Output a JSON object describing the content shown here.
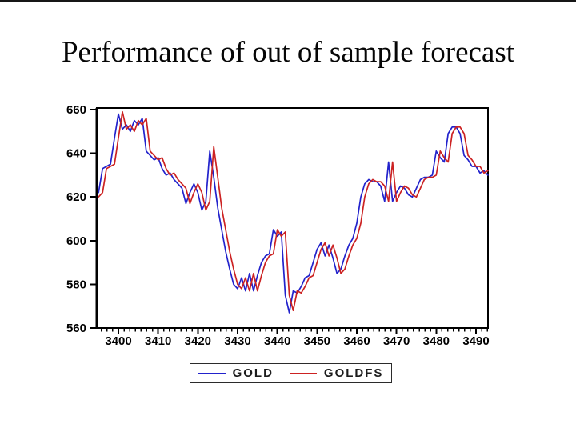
{
  "slide": {
    "title": "Performance of out of sample forecast"
  },
  "chart_data": {
    "type": "line",
    "title": "Performance of out of sample forecast",
    "xlabel": "",
    "ylabel": "",
    "grid": false,
    "legend_position": "bottom-outside-boxed",
    "xlim": [
      3394.56,
      3493.02
    ],
    "ylim": [
      560,
      660
    ],
    "x_ticks": [
      3400,
      3410,
      3420,
      3430,
      3440,
      3450,
      3460,
      3470,
      3480,
      3490
    ],
    "x_minor_ticks_between_majors": 6,
    "y_ticks": [
      560,
      580,
      600,
      620,
      640,
      660
    ],
    "x_start": 3395,
    "x_step": 1,
    "axis_color": "#000000",
    "tick_label_color": "#000000",
    "series": [
      {
        "name": "GOLD",
        "color": "#2222cc",
        "values": [
          622,
          633,
          634,
          635,
          647,
          658,
          651,
          653,
          650,
          655,
          653,
          656,
          641,
          639,
          637,
          638,
          633,
          630,
          631,
          628,
          626,
          624,
          617,
          622,
          626,
          622,
          614,
          618,
          641,
          629,
          615,
          605,
          595,
          587,
          580,
          578,
          583,
          577,
          585,
          577,
          584,
          590,
          593,
          594,
          605,
          602,
          604,
          575,
          567,
          577,
          576,
          579,
          583,
          584,
          590,
          596,
          599,
          593,
          598,
          592,
          585,
          587,
          593,
          598,
          601,
          608,
          620,
          626,
          628,
          627,
          627,
          625,
          618,
          636,
          618,
          622,
          625,
          624,
          621,
          620,
          624,
          628,
          629,
          629,
          630,
          641,
          638,
          636,
          649,
          652,
          652,
          649,
          639,
          637,
          634,
          634,
          631,
          632,
          630
        ]
      },
      {
        "name": "GOLDFS",
        "color": "#cc2222",
        "values": [
          620,
          622,
          633,
          634,
          635,
          647,
          659,
          651,
          653,
          650,
          655,
          653,
          656,
          641,
          639,
          637,
          638,
          633,
          630,
          631,
          628,
          626,
          624,
          617,
          622,
          626,
          622,
          614,
          618,
          643,
          629,
          615,
          605,
          595,
          587,
          580,
          578,
          583,
          577,
          585,
          577,
          584,
          590,
          593,
          594,
          605,
          602,
          604,
          575,
          568,
          577,
          576,
          579,
          583,
          584,
          590,
          596,
          599,
          593,
          598,
          592,
          585,
          587,
          593,
          598,
          601,
          608,
          620,
          626,
          628,
          627,
          627,
          625,
          618,
          636,
          618,
          622,
          625,
          624,
          621,
          620,
          624,
          628,
          629,
          629,
          630,
          641,
          638,
          636,
          649,
          652,
          652,
          649,
          639,
          637,
          634,
          634,
          631,
          632
        ]
      }
    ]
  }
}
